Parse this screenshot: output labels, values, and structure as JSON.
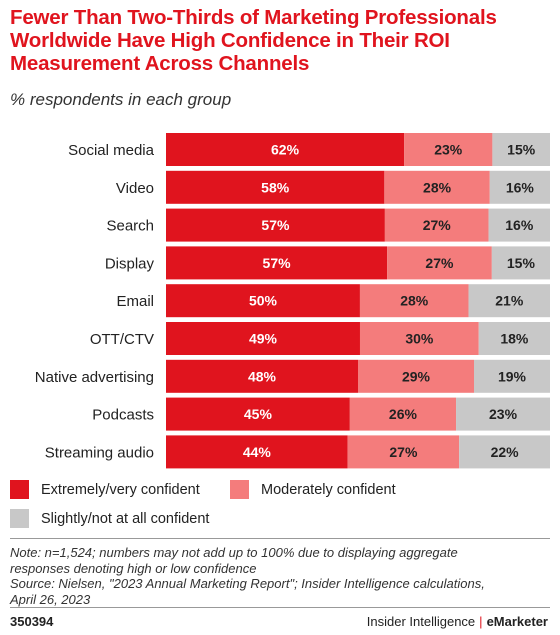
{
  "header": {
    "title": "Fewer Than Two-Thirds of Marketing Professionals Worldwide Have High Confidence in Their ROI Measurement Across Channels",
    "subtitle": "% respondents in each group"
  },
  "chart_data": {
    "type": "bar",
    "orientation": "horizontal",
    "stacked": true,
    "categories": [
      "Social media",
      "Video",
      "Search",
      "Display",
      "Email",
      "OTT/CTV",
      "Native advertising",
      "Podcasts",
      "Streaming audio"
    ],
    "series": [
      {
        "name": "Extremely/very confident",
        "values": [
          62,
          58,
          57,
          57,
          50,
          49,
          48,
          45,
          44
        ],
        "color": "#e0141e"
      },
      {
        "name": "Moderately confident",
        "values": [
          23,
          28,
          27,
          27,
          28,
          30,
          29,
          26,
          27
        ],
        "color": "#f47c7c"
      },
      {
        "name": "Slightly/not at all confident",
        "values": [
          15,
          16,
          16,
          15,
          21,
          18,
          19,
          23,
          22
        ],
        "color": "#c8c8c8"
      }
    ],
    "value_suffix": "%",
    "legend_position": "bottom",
    "grid": false
  },
  "note": {
    "line1": "Note: n=1,524; numbers may not add up to 100% due to displaying aggregate",
    "line2": "responses denoting high or low confidence",
    "line3": "Source: Nielsen, \"2023 Annual Marketing Report\"; Insider Intelligence calculations,",
    "line4": "April 26, 2023"
  },
  "footer": {
    "chart_id": "350394",
    "brand_left": "Insider Intelligence",
    "separator": "|",
    "brand_right": "eMarketer"
  }
}
